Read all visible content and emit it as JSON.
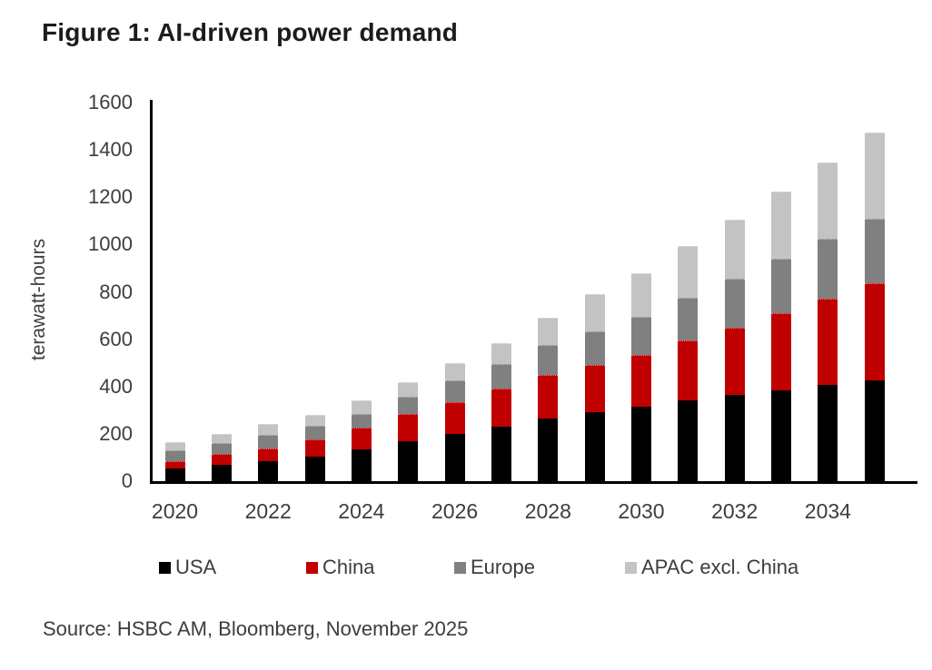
{
  "title": "Figure 1: AI-driven power demand",
  "source": "Source: HSBC AM, Bloomberg, November 2025",
  "chart_data": {
    "type": "bar",
    "stacked": true,
    "title": "Figure 1: AI-driven power demand",
    "xlabel": "",
    "ylabel": "terawatt-hours",
    "ylim": [
      0,
      1600
    ],
    "ytick_step": 200,
    "ytick_labels": [
      "0",
      "200",
      "400",
      "600",
      "800",
      "1000",
      "1200",
      "1400",
      "1600"
    ],
    "grid": false,
    "legend_position": "bottom",
    "categories": [
      "2020",
      "2021",
      "2022",
      "2023",
      "2024",
      "2025",
      "2026",
      "2027",
      "2028",
      "2029",
      "2030",
      "2031",
      "2032",
      "2033",
      "2034",
      "2035"
    ],
    "x_tick_labels": [
      "2020",
      "2022",
      "2024",
      "2026",
      "2028",
      "2030",
      "2032",
      "2034"
    ],
    "units": "terawatt-hours",
    "series": [
      {
        "name": "USA",
        "color": "#000000",
        "values": [
          55,
          70,
          85,
          105,
          135,
          170,
          200,
          230,
          265,
          290,
          315,
          340,
          365,
          385,
          405,
          425
        ]
      },
      {
        "name": "China",
        "color": "#c00000",
        "values": [
          30,
          45,
          55,
          70,
          90,
          115,
          135,
          160,
          185,
          200,
          220,
          255,
          285,
          325,
          365,
          410
        ]
      },
      {
        "name": "Europe",
        "color": "#808080",
        "values": [
          45,
          45,
          55,
          60,
          60,
          70,
          90,
          105,
          125,
          145,
          160,
          180,
          205,
          230,
          255,
          275
        ]
      },
      {
        "name": "APAC excl. China",
        "color": "#c3c3c3",
        "values": [
          35,
          40,
          45,
          45,
          55,
          65,
          75,
          90,
          115,
          155,
          185,
          220,
          250,
          285,
          320,
          365
        ]
      }
    ]
  }
}
